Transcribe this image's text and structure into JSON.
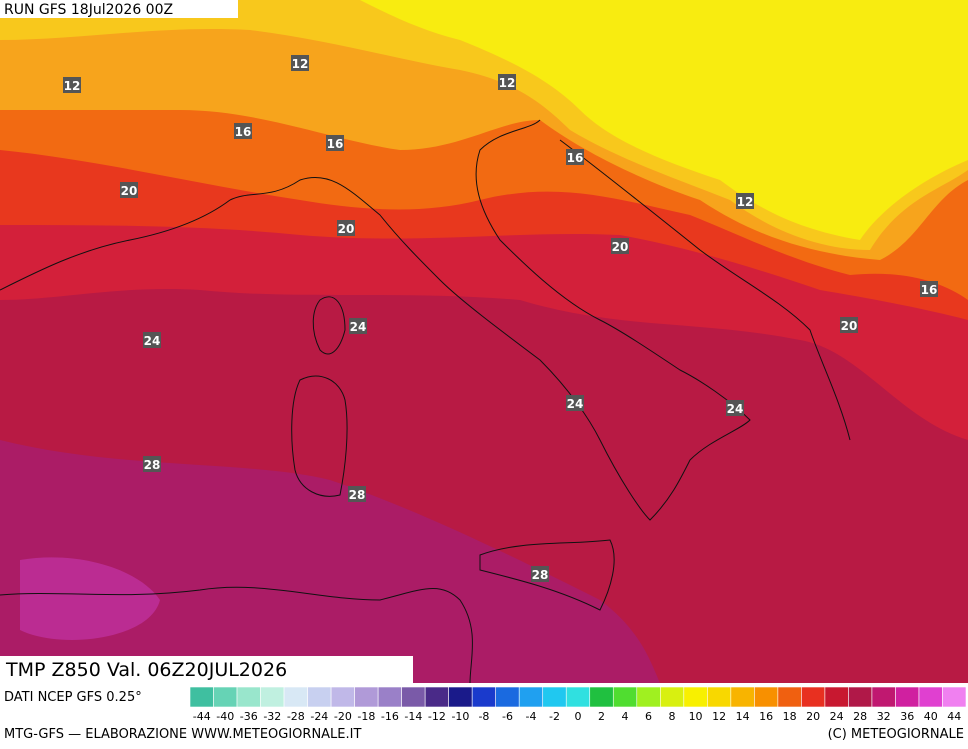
{
  "run_label": "RUN GFS 18Jul2026 00Z",
  "title": "TMP Z850 Val. 06Z20JUL2026",
  "source": "DATI NCEP GFS 0.25°",
  "footer_left": "MTG-GFS — ELABORAZIONE WWW.METEOGIORNALE.IT",
  "footer_right": "(C) METEOGIORNALE",
  "contour_labels": [
    12,
    12,
    12,
    16,
    16,
    16,
    12,
    20,
    20,
    20,
    16,
    20,
    24,
    24,
    24,
    24,
    28,
    28,
    28
  ],
  "colorbar": {
    "ticks": [
      -44,
      -40,
      -36,
      -32,
      -28,
      -24,
      -20,
      -18,
      -16,
      -14,
      -12,
      -10,
      -8,
      -6,
      -4,
      -2,
      0,
      2,
      4,
      6,
      8,
      10,
      12,
      14,
      16,
      18,
      20,
      24,
      28,
      32,
      36,
      40,
      44
    ],
    "colors": [
      "#3fbfa0",
      "#66d3b5",
      "#99e6cc",
      "#c0f0e0",
      "#d8e8f5",
      "#c8d0f0",
      "#c0b8e8",
      "#b09ad8",
      "#9a80c8",
      "#7a5aa8",
      "#4a2a88",
      "#1a1a8a",
      "#1a3acc",
      "#1a6ae0",
      "#20a0f0",
      "#20c8f0",
      "#30e0e0",
      "#20c040",
      "#50dd30",
      "#a0f020",
      "#d8f010",
      "#f8f000",
      "#f8d800",
      "#f8b400",
      "#f89000",
      "#f06010",
      "#e83020",
      "#c81830",
      "#b01848",
      "#c01870",
      "#d020a0",
      "#e040d0",
      "#f080f0"
    ]
  }
}
